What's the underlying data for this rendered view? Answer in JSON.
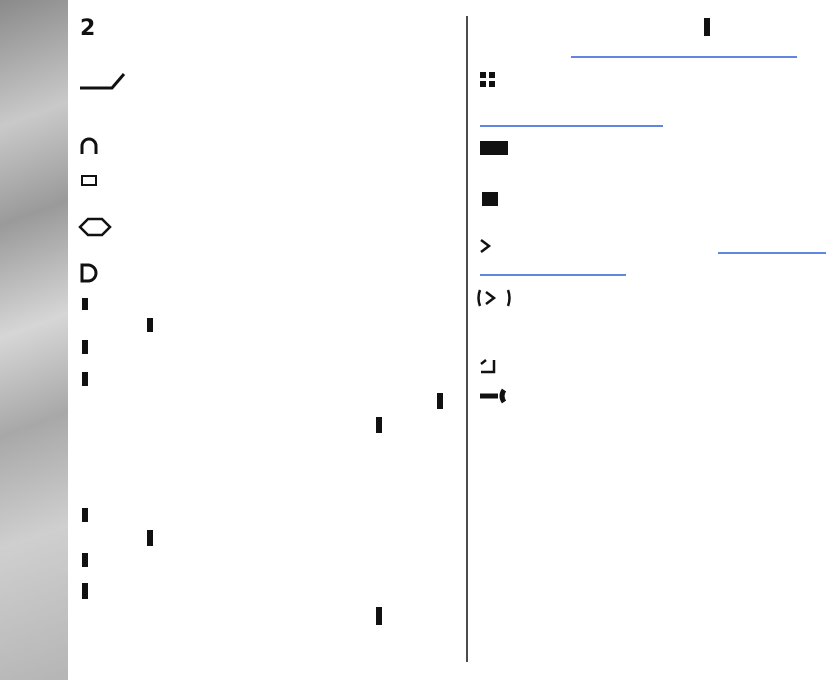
{
  "header": {
    "number": "2"
  }
}
